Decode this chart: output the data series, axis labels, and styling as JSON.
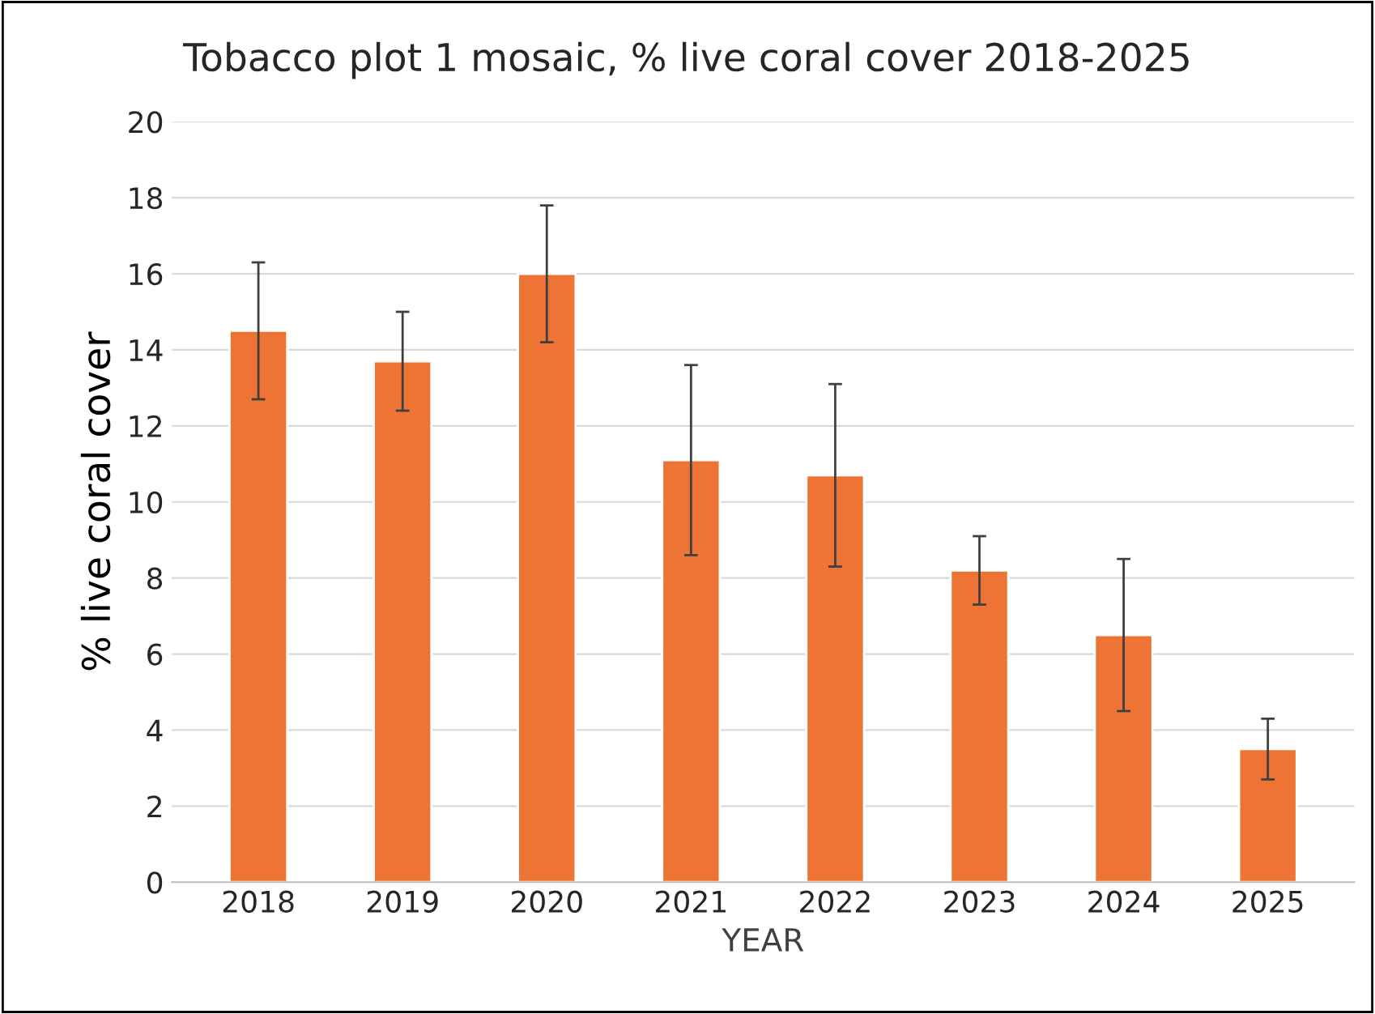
{
  "chart_data": {
    "type": "bar",
    "title": "Tobacco plot 1 mosaic, % live coral cover 2018-2025",
    "xlabel": "YEAR",
    "ylabel": "% live coral cover",
    "categories": [
      "2018",
      "2019",
      "2020",
      "2021",
      "2022",
      "2023",
      "2024",
      "2025"
    ],
    "values": [
      14.5,
      13.7,
      16.0,
      11.1,
      10.7,
      8.2,
      6.5,
      3.5
    ],
    "errors": [
      1.8,
      1.3,
      1.8,
      2.5,
      2.4,
      0.9,
      2.0,
      0.8
    ],
    "color": "#ed7435",
    "ylim": [
      0,
      20
    ],
    "yticks": [
      0,
      2,
      4,
      6,
      8,
      10,
      12,
      14,
      16,
      18,
      20
    ],
    "grid": "y",
    "legend": false
  }
}
